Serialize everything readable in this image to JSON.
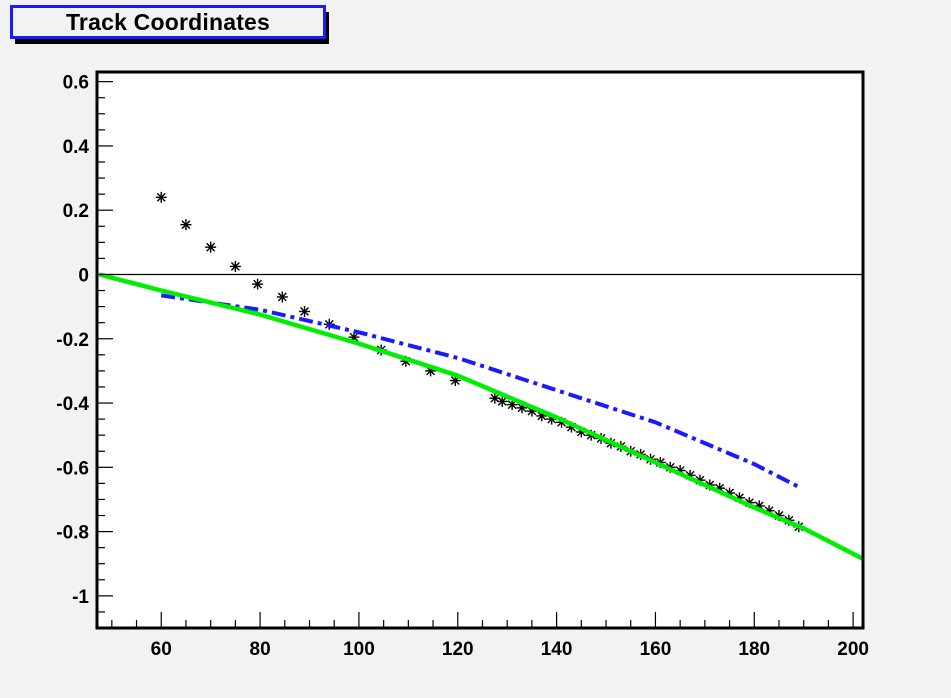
{
  "title": "Track Coordinates",
  "chart_data": {
    "type": "scatter",
    "title": "Track Coordinates",
    "xlabel": "",
    "ylabel": "",
    "xlim": [
      47,
      202
    ],
    "ylim": [
      -1.1,
      0.63
    ],
    "x_ticks": [
      60,
      80,
      100,
      120,
      140,
      160,
      180,
      200
    ],
    "x_tick_labels": [
      "60",
      "80",
      "100",
      "120",
      "140",
      "160",
      "180",
      "200"
    ],
    "y_ticks": [
      0.6,
      0.4,
      0.2,
      0,
      -0.2,
      -0.4,
      -0.6,
      -0.8,
      -1
    ],
    "y_tick_labels": [
      "0.6",
      "0.4",
      "0.2",
      "0",
      "-0.2",
      "-0.4",
      "-0.6",
      "-0.8",
      "-1"
    ],
    "zero_line": true,
    "grid": false,
    "series": [
      {
        "style": "markers",
        "marker": "asterisk",
        "color": "#000000",
        "points": [
          [
            60,
            0.24
          ],
          [
            65,
            0.155
          ],
          [
            70,
            0.085
          ],
          [
            75,
            0.025
          ],
          [
            79.5,
            -0.03
          ],
          [
            84.5,
            -0.07
          ],
          [
            89,
            -0.115
          ],
          [
            94,
            -0.155
          ],
          [
            99,
            -0.195
          ],
          [
            104.5,
            -0.235
          ],
          [
            109.5,
            -0.27
          ],
          [
            114.5,
            -0.3
          ],
          [
            119.5,
            -0.33
          ],
          [
            127.5,
            -0.385
          ],
          [
            129,
            -0.395
          ],
          [
            131,
            -0.405
          ],
          [
            133,
            -0.415
          ],
          [
            135,
            -0.425
          ],
          [
            137,
            -0.44
          ],
          [
            139,
            -0.45
          ],
          [
            141,
            -0.46
          ],
          [
            143,
            -0.475
          ],
          [
            145,
            -0.49
          ],
          [
            147,
            -0.5
          ],
          [
            149,
            -0.51
          ],
          [
            151,
            -0.525
          ],
          [
            153,
            -0.535
          ],
          [
            155,
            -0.55
          ],
          [
            157,
            -0.56
          ],
          [
            159,
            -0.575
          ],
          [
            161,
            -0.585
          ],
          [
            163,
            -0.6
          ],
          [
            165,
            -0.61
          ],
          [
            167,
            -0.625
          ],
          [
            169,
            -0.64
          ],
          [
            171,
            -0.655
          ],
          [
            173,
            -0.665
          ],
          [
            175,
            -0.68
          ],
          [
            177,
            -0.695
          ],
          [
            179,
            -0.71
          ],
          [
            181,
            -0.72
          ],
          [
            183,
            -0.735
          ],
          [
            185,
            -0.75
          ],
          [
            187,
            -0.765
          ],
          [
            189,
            -0.785
          ]
        ]
      },
      {
        "style": "dash-dot",
        "color": "#1a1aff",
        "points": [
          [
            60,
            -0.065
          ],
          [
            80,
            -0.11
          ],
          [
            100,
            -0.18
          ],
          [
            120,
            -0.26
          ],
          [
            140,
            -0.36
          ],
          [
            160,
            -0.46
          ],
          [
            180,
            -0.59
          ],
          [
            189.5,
            -0.665
          ]
        ]
      },
      {
        "style": "solid",
        "color": "#00ee00",
        "points": [
          [
            47.5,
            0.0
          ],
          [
            60,
            -0.05
          ],
          [
            80,
            -0.125
          ],
          [
            100,
            -0.215
          ],
          [
            120,
            -0.315
          ],
          [
            140,
            -0.445
          ],
          [
            160,
            -0.585
          ],
          [
            180,
            -0.725
          ],
          [
            190,
            -0.79
          ],
          [
            202,
            -0.885
          ]
        ]
      }
    ]
  }
}
